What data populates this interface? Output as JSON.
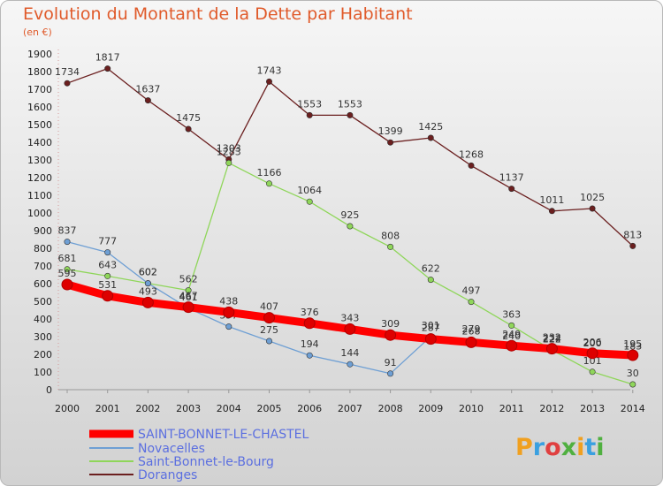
{
  "title": "Evolution du Montant de la Dette par Habitant",
  "subtitle": "(en €)",
  "logo": "Proxiti",
  "chart_data": {
    "type": "line",
    "title": "Evolution du Montant de la Dette par Habitant",
    "subtitle": "(en €)",
    "x": [
      "2000",
      "2001",
      "2002",
      "2003",
      "2004",
      "2005",
      "2006",
      "2007",
      "2008",
      "2009",
      "2010",
      "2011",
      "2012",
      "2013",
      "2014"
    ],
    "ylim": [
      0,
      1900
    ],
    "yticks": [
      0,
      100,
      200,
      300,
      400,
      500,
      600,
      700,
      800,
      900,
      1000,
      1100,
      1200,
      1300,
      1400,
      1500,
      1600,
      1700,
      1800,
      1900
    ],
    "grid": false,
    "legend_position": "bottom-left",
    "series": [
      {
        "name": "SAINT-BONNET-LE-CHASTEL",
        "color": "#ff0000",
        "values": [
          595,
          531,
          493,
          467,
          438,
          407,
          376,
          343,
          309,
          287,
          268,
          249,
          232,
          206,
          195
        ]
      },
      {
        "name": "Novacelles",
        "color": "#6e9fd4",
        "values": [
          837,
          777,
          602,
          461,
          357,
          275,
          194,
          144,
          91,
          301,
          279,
          240,
          222,
          200,
          183
        ]
      },
      {
        "name": "Saint-Bonnet-le-Bourg",
        "color": "#8fd65a",
        "values": [
          681,
          643,
          602,
          562,
          1283,
          1166,
          1064,
          925,
          808,
          622,
          497,
          363,
          224,
          101,
          30
        ]
      },
      {
        "name": "Doranges",
        "color": "#6b1f1f",
        "values": [
          1734,
          1817,
          1637,
          1475,
          1303,
          1743,
          1553,
          1553,
          1399,
          1425,
          1268,
          1137,
          1011,
          1025,
          813
        ]
      }
    ]
  },
  "colors": {
    "title": "#e05a2a",
    "legend_text": "#5b6fe0"
  }
}
